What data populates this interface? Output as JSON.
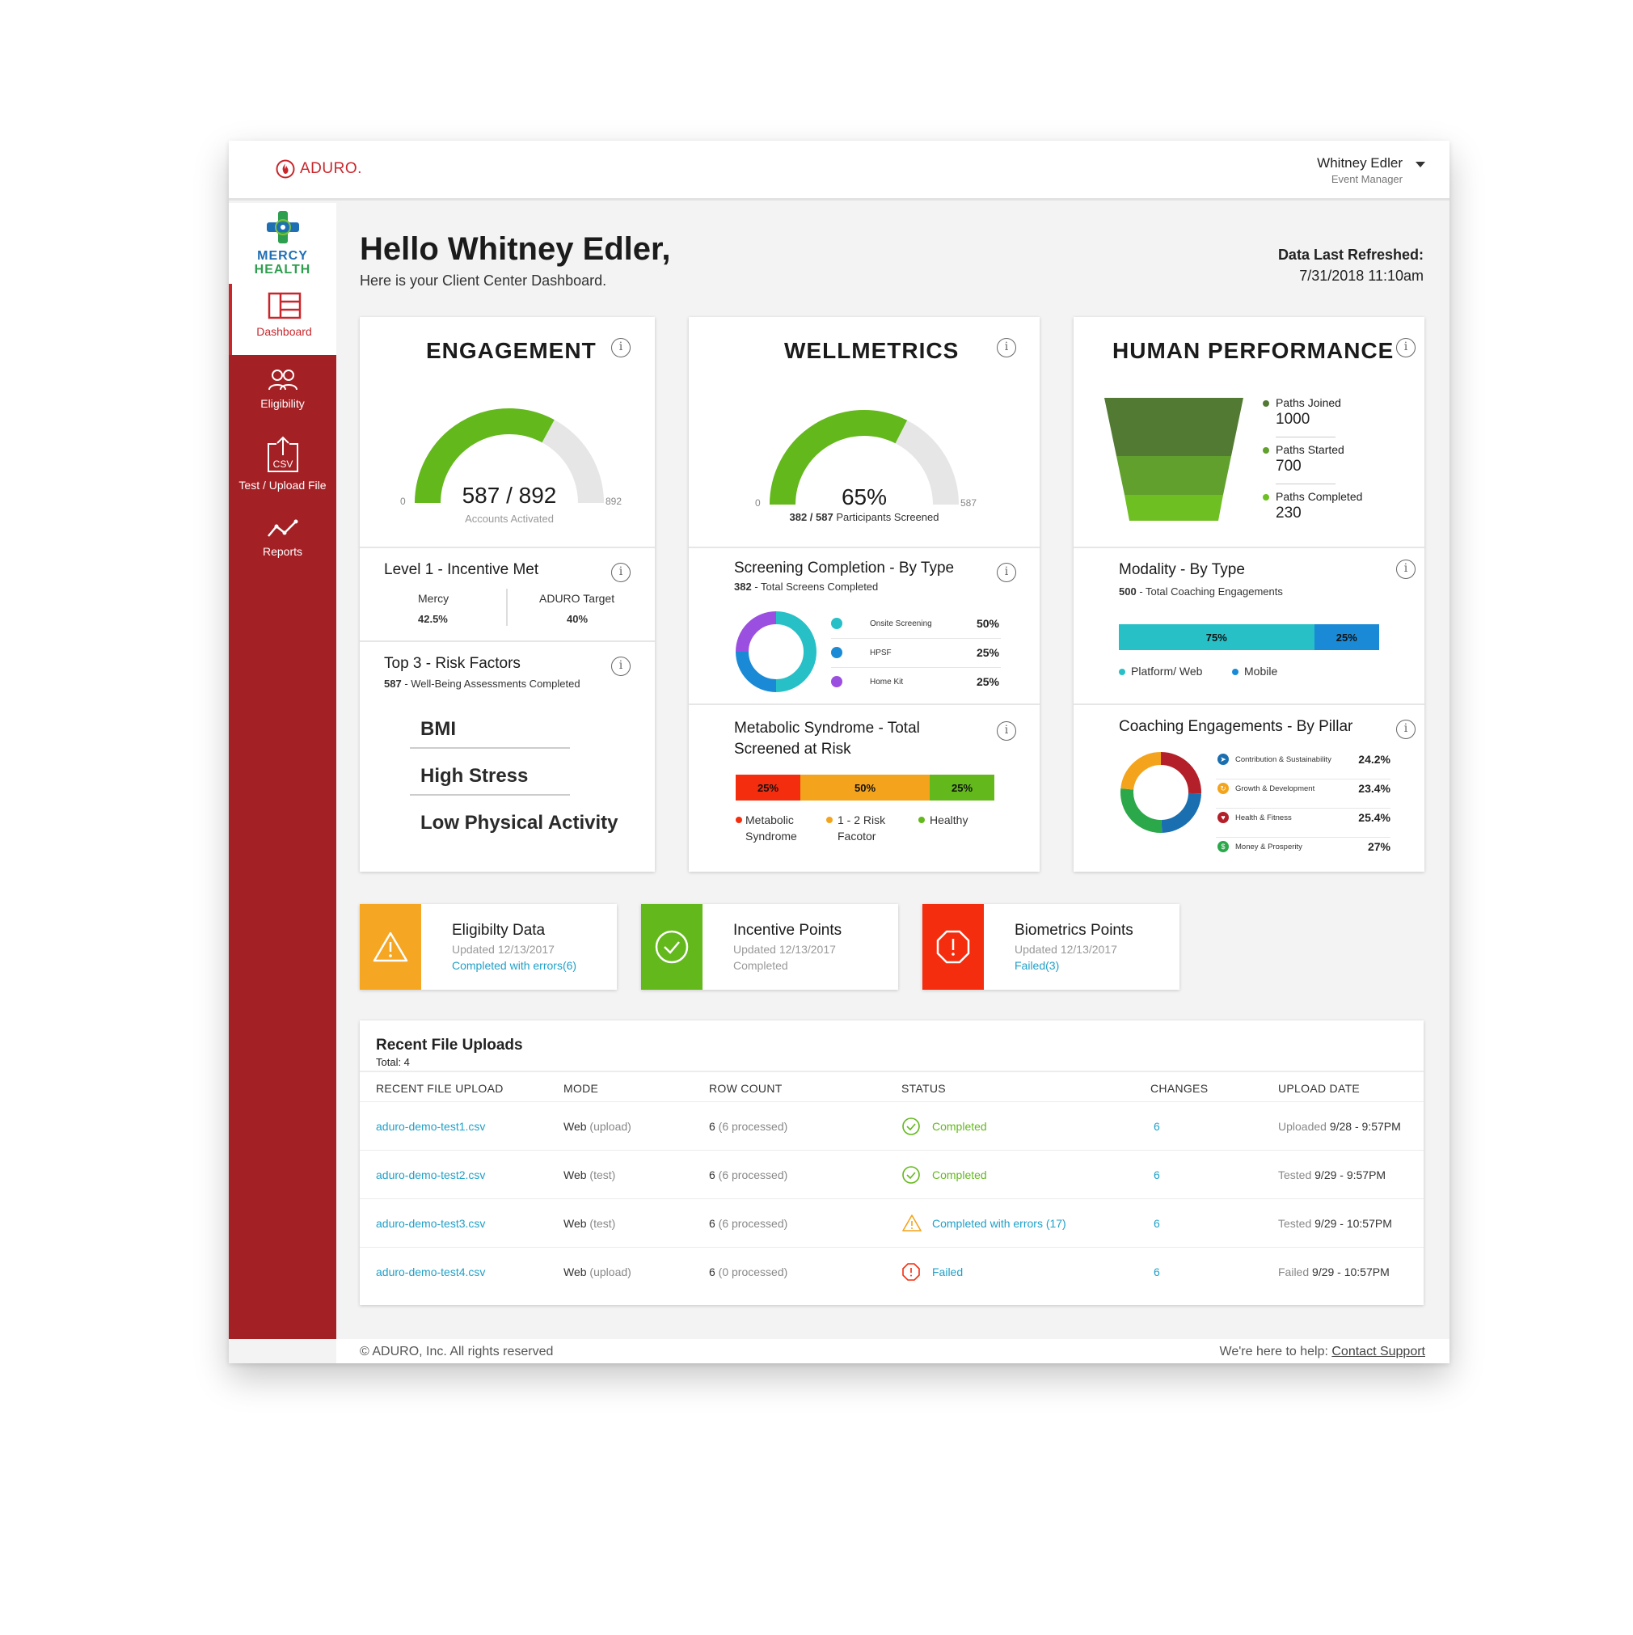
{
  "header": {
    "brand": "ADURO.",
    "user_name": "Whitney Edler",
    "user_role": "Event  Manager"
  },
  "sidebar": {
    "org_line1": "MERCY",
    "org_line2": "HEALTH",
    "items": [
      {
        "label": "Dashboard",
        "icon": "dashboard-icon"
      },
      {
        "label": "Eligibility",
        "icon": "people-icon"
      },
      {
        "label": "Test / Upload File",
        "icon": "csv-upload-icon",
        "icon_text": "CSV"
      },
      {
        "label": "Reports",
        "icon": "trend-line-icon"
      }
    ]
  },
  "greeting": {
    "title": "Hello Whitney Edler,",
    "subtitle": "Here is your Client Center Dashboard."
  },
  "refresh": {
    "label": "Data Last Refreshed:",
    "value": "7/31/2018  11:10am"
  },
  "engagement": {
    "title": "ENGAGEMENT",
    "gauge_value": 587,
    "gauge_max": 892,
    "gauge_text": "587 / 892",
    "gauge_min_label": "0",
    "gauge_max_label": "892",
    "caption": "Accounts Activated",
    "incentive_title": "Level 1 - Incentive Met",
    "mercy_label": "Mercy",
    "mercy_value": "42.5%",
    "target_label": "ADURO Target",
    "target_value": "40%",
    "risk_title": "Top 3 - Risk Factors",
    "risk_count": "587",
    "risk_sub": " - Well-Being Assessments Completed",
    "risks": [
      "BMI",
      "High Stress",
      "Low Physical Activity"
    ]
  },
  "wellmetrics": {
    "title": "WELLMETRICS",
    "gauge_value": 65,
    "gauge_text": "65%",
    "gauge_min_label": "0",
    "gauge_max_label": "587",
    "caption_count": "382 / 587",
    "caption_text": " Participants Screened",
    "screening_title": "Screening Completion - By Type",
    "screening_count": "382",
    "screening_sub": " - Total Screens Completed",
    "screening": [
      {
        "label": "Onsite Screening",
        "value": "50%",
        "pct": 50,
        "color": "#27c0c7"
      },
      {
        "label": "HPSF",
        "value": "25%",
        "pct": 25,
        "color": "#1a8ad6"
      },
      {
        "label": "Home Kit",
        "value": "25%",
        "pct": 25,
        "color": "#9b4fe0"
      }
    ],
    "metabolic_title_1": "Metabolic Syndrome - Total",
    "metabolic_title_2": "Screened at Risk",
    "metabolic": [
      {
        "label": "25%",
        "pct": 25,
        "color": "#f42d0e",
        "legend": "Metabolic\nSyndrome"
      },
      {
        "label": "50%",
        "pct": 50,
        "color": "#f4a41c",
        "legend": "1 - 2 Risk\nFacotor"
      },
      {
        "label": "25%",
        "pct": 25,
        "color": "#63b81b",
        "legend": "Healthy"
      }
    ]
  },
  "human_performance": {
    "title": "HUMAN PERFORMANCE",
    "funnel": [
      {
        "label": "Paths Joined",
        "value": "1000",
        "color": "#537a33"
      },
      {
        "label": "Paths Started",
        "value": "700",
        "color": "#61a02c"
      },
      {
        "label": "Paths Completed",
        "value": "230",
        "color": "#6ebf21"
      }
    ],
    "modality_title": "Modality - By Type",
    "modality_count": "500",
    "modality_sub": " - Total Coaching Engagements",
    "modality": [
      {
        "label": "75%",
        "pct": 75,
        "color": "#27c0c7",
        "legend": "Platform/ Web"
      },
      {
        "label": "25%",
        "pct": 25,
        "color": "#1a8ad6",
        "legend": "Mobile"
      }
    ],
    "pillar_title": "Coaching Engagements - By Pillar",
    "pillars": [
      {
        "label": "Contribution & Sustainability",
        "value": "24.2%",
        "pct": 24.2,
        "color": "#1a6fb0",
        "icon": "compass-icon"
      },
      {
        "label": "Growth & Development",
        "value": "23.4%",
        "pct": 23.4,
        "color": "#f4a41c",
        "icon": "growth-icon"
      },
      {
        "label": "Health & Fitness",
        "value": "25.4%",
        "pct": 25.4,
        "color": "#b3202a",
        "icon": "heart-icon"
      },
      {
        "label": "Money & Prosperity",
        "value": "27%",
        "pct": 27,
        "color": "#2aa84a",
        "icon": "dollar-icon"
      }
    ]
  },
  "status_tiles": [
    {
      "title": "Eligibilty Data",
      "updated": "Updated 12/13/2017",
      "status": "Completed with errors(6)",
      "color": "#f5a623",
      "icon": "warning-icon"
    },
    {
      "title": "Incentive Points",
      "updated": "Updated 12/13/2017",
      "status": "Completed",
      "color": "#63b81b",
      "icon": "check-icon"
    },
    {
      "title": "Biometrics Points",
      "updated": "Updated 12/13/2017",
      "status": "Failed(3)",
      "color": "#f42d0e",
      "icon": "error-octagon-icon"
    }
  ],
  "uploads": {
    "title": "Recent File Uploads",
    "total": "Total: 4",
    "columns": [
      "RECENT FILE UPLOAD",
      "MODE",
      "ROW COUNT",
      "STATUS",
      "CHANGES",
      "UPLOAD DATE"
    ],
    "rows": [
      {
        "file": "aduro-demo-test1.csv",
        "mode": "Web",
        "mode_sub": " (upload)",
        "count": "6",
        "count_sub": " (6 processed)",
        "status": "Completed",
        "status_type": "ok",
        "changes": "6",
        "date_pre": "Uploaded ",
        "date": "9/28 - 9:57PM"
      },
      {
        "file": "aduro-demo-test2.csv",
        "mode": "Web",
        "mode_sub": " (test)",
        "count": "6",
        "count_sub": " (6 processed)",
        "status": "Completed",
        "status_type": "ok",
        "changes": "6",
        "date_pre": "Tested ",
        "date": "9/29 - 9:57PM"
      },
      {
        "file": "aduro-demo-test3.csv",
        "mode": "Web",
        "mode_sub": " (test)",
        "count": "6",
        "count_sub": " (6 processed)",
        "status": "Completed with errors (17)",
        "status_type": "warn",
        "changes": "6",
        "date_pre": "Tested ",
        "date": "9/29 - 10:57PM"
      },
      {
        "file": "aduro-demo-test4.csv",
        "mode": "Web",
        "mode_sub": " (upload)",
        "count": "6",
        "count_sub": " (0 processed)",
        "status": "Failed",
        "status_type": "fail",
        "changes": "6",
        "date_pre": "Failed ",
        "date": "9/29 - 10:57PM"
      }
    ]
  },
  "footer": {
    "copyright": "© ADURO, Inc. All rights reserved",
    "help": "We're here to help:  ",
    "contact": "Contact Support"
  }
}
